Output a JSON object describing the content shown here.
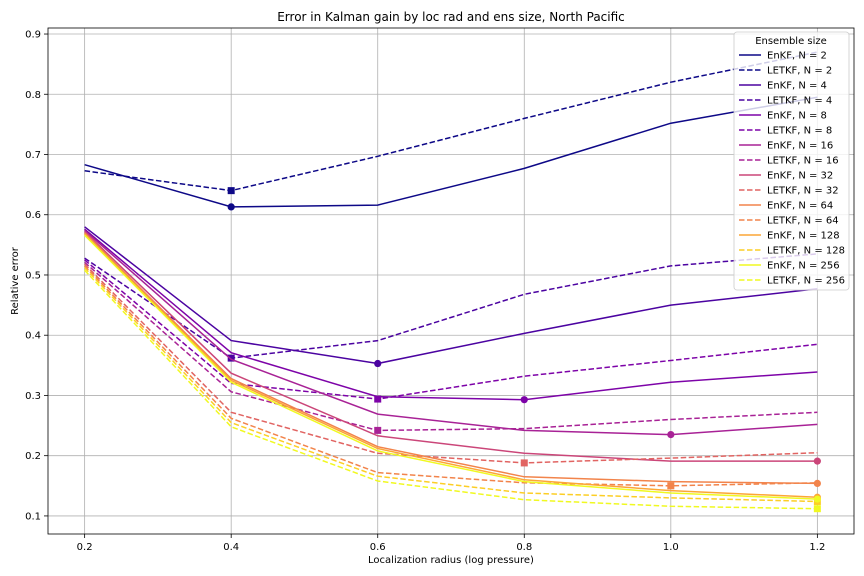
{
  "chart_data": {
    "type": "line",
    "title": "Error in Kalman gain by loc rad and ens size, North Pacific",
    "xlabel": "Localization radius (log pressure)",
    "ylabel": "Relative error",
    "xlim": [
      0.15,
      1.25
    ],
    "ylim": [
      0.07,
      0.91
    ],
    "x": [
      0.2,
      0.4,
      0.6,
      0.8,
      1.0,
      1.2
    ],
    "xticks": [
      "0.2",
      "0.4",
      "0.6",
      "0.8",
      "1.0",
      "1.2"
    ],
    "yticks": [
      "0.1",
      "0.2",
      "0.3",
      "0.4",
      "0.5",
      "0.6",
      "0.7",
      "0.8",
      "0.9"
    ],
    "grid": true,
    "legend_title": "Ensemble size",
    "legend_position": "top-right",
    "series": [
      {
        "name": "EnKF, N = 2",
        "style": "solid",
        "color": "#0d0887",
        "values": [
          0.683,
          0.613,
          0.616,
          0.677,
          0.752,
          0.795
        ],
        "best_index": 1
      },
      {
        "name": "LETKF, N = 2",
        "style": "dashed",
        "color": "#0d0887",
        "values": [
          0.673,
          0.64,
          0.697,
          0.76,
          0.82,
          0.87
        ],
        "best_index": 1
      },
      {
        "name": "EnKF, N = 4",
        "style": "solid",
        "color": "#4b03a1",
        "values": [
          0.58,
          0.391,
          0.353,
          0.403,
          0.45,
          0.477
        ],
        "best_index": 2
      },
      {
        "name": "LETKF, N = 4",
        "style": "dashed",
        "color": "#4b03a1",
        "values": [
          0.528,
          0.362,
          0.391,
          0.468,
          0.515,
          0.535
        ],
        "best_index": 1
      },
      {
        "name": "EnKF, N = 8",
        "style": "solid",
        "color": "#7d03a8",
        "values": [
          0.576,
          0.371,
          0.298,
          0.293,
          0.322,
          0.339
        ],
        "best_index": 3
      },
      {
        "name": "LETKF, N = 8",
        "style": "dashed",
        "color": "#7d03a8",
        "values": [
          0.525,
          0.32,
          0.294,
          0.332,
          0.358,
          0.385
        ],
        "best_index": 2
      },
      {
        "name": "EnKF, N = 16",
        "style": "solid",
        "color": "#a82296",
        "values": [
          0.574,
          0.36,
          0.269,
          0.242,
          0.235,
          0.252
        ],
        "best_index": 4
      },
      {
        "name": "LETKF, N = 16",
        "style": "dashed",
        "color": "#a82296",
        "values": [
          0.521,
          0.306,
          0.242,
          0.245,
          0.26,
          0.272
        ],
        "best_index": 2
      },
      {
        "name": "EnKF, N = 32",
        "style": "solid",
        "color": "#cb4679",
        "values": [
          0.572,
          0.337,
          0.233,
          0.204,
          0.191,
          0.191
        ],
        "best_index": 5
      },
      {
        "name": "LETKF, N = 32",
        "style": "dashed",
        "color": "#e16462",
        "values": [
          0.518,
          0.272,
          0.204,
          0.188,
          0.196,
          0.205
        ],
        "best_index": 3
      },
      {
        "name": "EnKF, N = 64",
        "style": "solid",
        "color": "#f2844b",
        "values": [
          0.57,
          0.328,
          0.215,
          0.165,
          0.157,
          0.154
        ],
        "best_index": 5
      },
      {
        "name": "LETKF, N = 64",
        "style": "dashed",
        "color": "#f2844b",
        "values": [
          0.515,
          0.262,
          0.172,
          0.155,
          0.15,
          0.155
        ],
        "best_index": 4
      },
      {
        "name": "EnKF, N = 128",
        "style": "solid",
        "color": "#fca636",
        "values": [
          0.568,
          0.325,
          0.212,
          0.16,
          0.142,
          0.131
        ],
        "best_index": 5
      },
      {
        "name": "LETKF, N = 128",
        "style": "dashed",
        "color": "#fcce25",
        "values": [
          0.512,
          0.255,
          0.166,
          0.138,
          0.13,
          0.124
        ],
        "best_index": 5
      },
      {
        "name": "EnKF, N = 256",
        "style": "solid",
        "color": "#f0f921",
        "values": [
          0.566,
          0.322,
          0.208,
          0.157,
          0.138,
          0.128
        ],
        "best_index": 5
      },
      {
        "name": "LETKF, N = 256",
        "style": "dashed",
        "color": "#f0f921",
        "values": [
          0.508,
          0.248,
          0.158,
          0.127,
          0.116,
          0.112
        ],
        "best_index": 5
      }
    ]
  }
}
